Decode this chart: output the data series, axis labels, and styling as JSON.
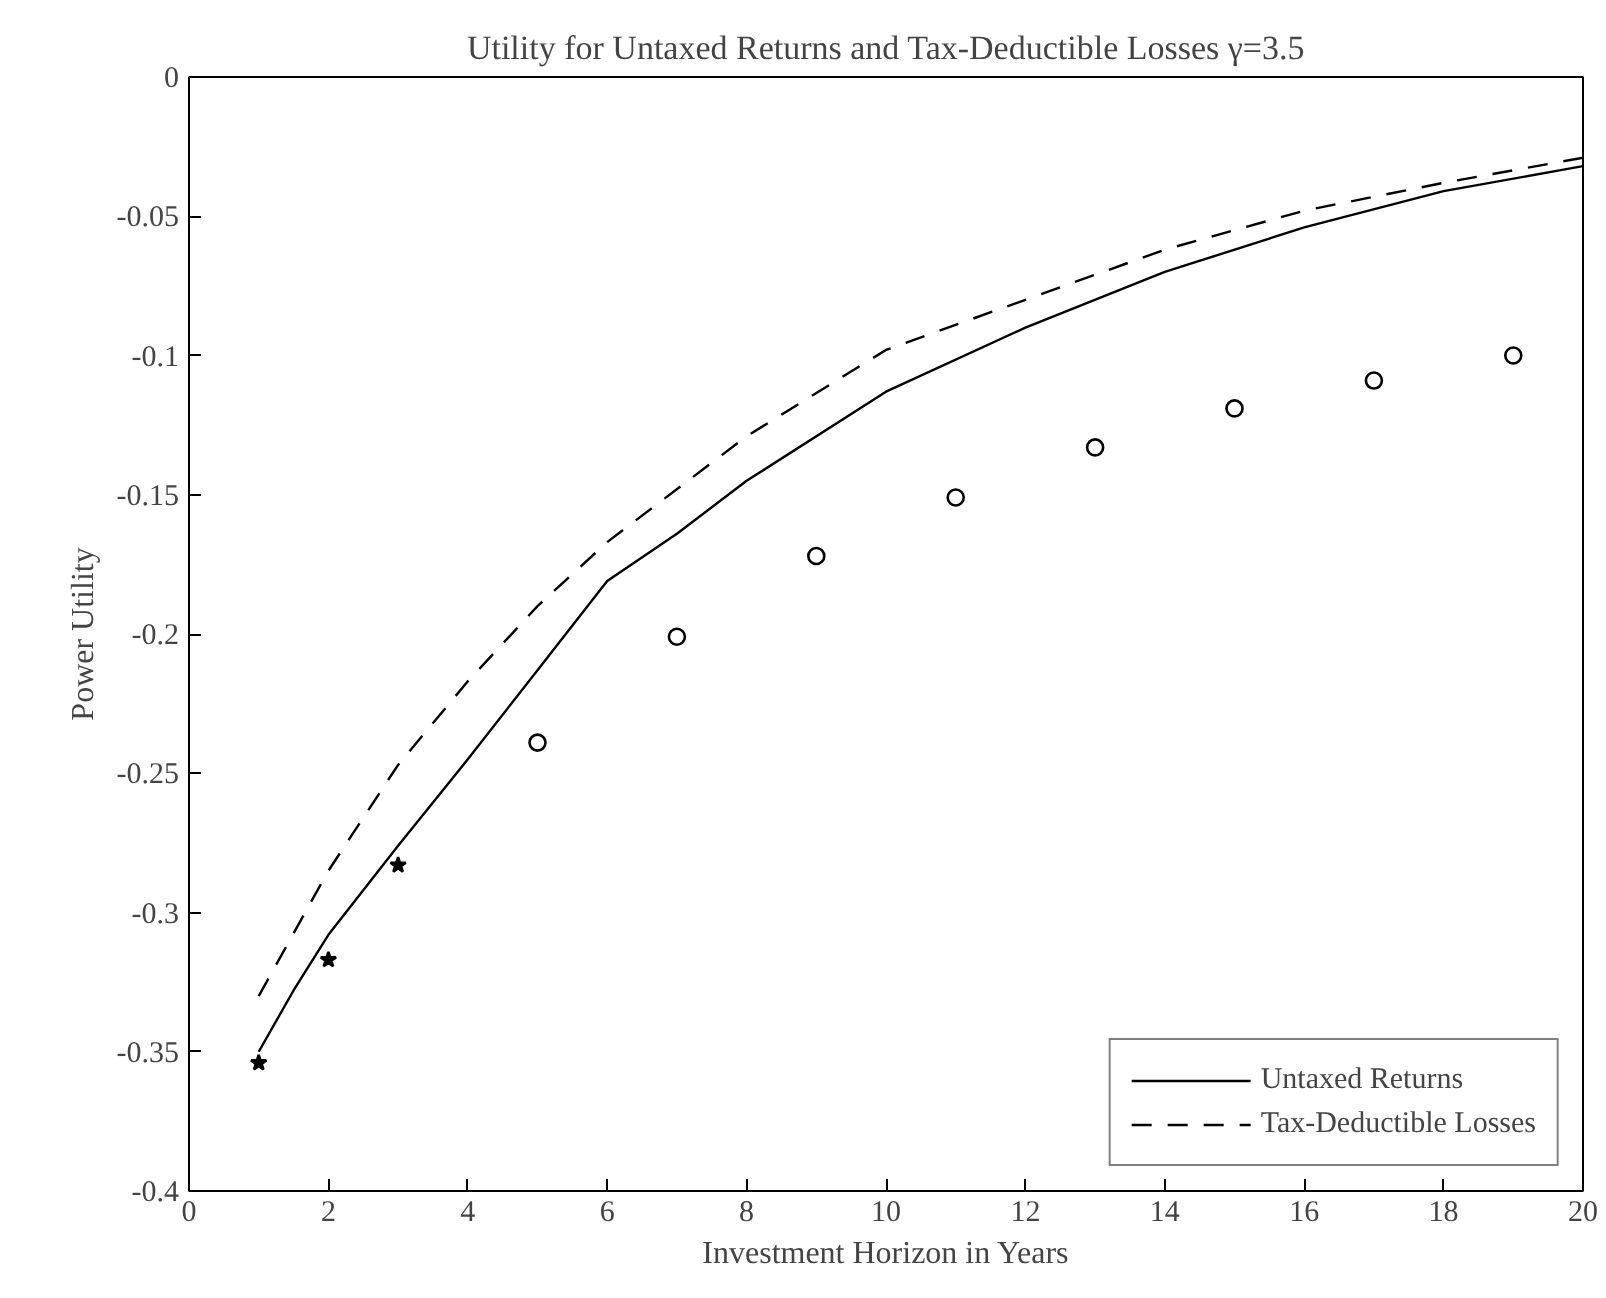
{
  "chart_data": {
    "type": "line",
    "title": "Utility for Untaxed Returns and Tax-Deductible Losses γ=3.5",
    "xlabel": "Investment Horizon in Years",
    "ylabel": "Power Utility",
    "xlim": [
      0,
      20
    ],
    "xticks": [
      0,
      2,
      4,
      6,
      8,
      10,
      12,
      14,
      16,
      18,
      20
    ],
    "ylim": [
      -0.4,
      0
    ],
    "yticks": [
      -0.4,
      -0.35,
      -0.3,
      -0.25,
      -0.2,
      -0.15,
      -0.1,
      -0.05,
      0
    ],
    "grid": false,
    "legend": "bottom right",
    "series": [
      {
        "name": "Untaxed Returns",
        "line_style": "solid",
        "color": "#000000",
        "x": [
          1,
          1.5,
          2,
          3,
          4,
          5,
          6,
          7,
          8,
          10,
          12,
          14,
          16,
          18,
          20
        ],
        "values": [
          -0.35,
          -0.328,
          -0.308,
          -0.276,
          -0.245,
          -0.213,
          -0.181,
          -0.164,
          -0.145,
          -0.113,
          -0.09,
          -0.07,
          -0.054,
          -0.041,
          -0.032
        ]
      },
      {
        "name": "Tax-Deductible Losses",
        "line_style": "dashed",
        "color": "#000000",
        "x": [
          1,
          2,
          3,
          4,
          5,
          6,
          8,
          10,
          12,
          14,
          16,
          18,
          20
        ],
        "values": [
          -0.33,
          -0.285,
          -0.247,
          -0.217,
          -0.19,
          -0.167,
          -0.129,
          -0.098,
          -0.08,
          -0.062,
          -0.048,
          -0.038,
          -0.029
        ]
      },
      {
        "type": "scatter",
        "marker": "star",
        "color": "#000000",
        "x": [
          1,
          2,
          3
        ],
        "values": [
          -0.354,
          -0.317,
          -0.283
        ]
      },
      {
        "type": "scatter",
        "marker": "circle",
        "color": "#000000",
        "x": [
          5,
          7,
          9,
          11,
          13,
          15,
          17,
          19
        ],
        "values": [
          -0.239,
          -0.201,
          -0.172,
          -0.151,
          -0.133,
          -0.119,
          -0.109,
          -0.1
        ]
      }
    ]
  }
}
